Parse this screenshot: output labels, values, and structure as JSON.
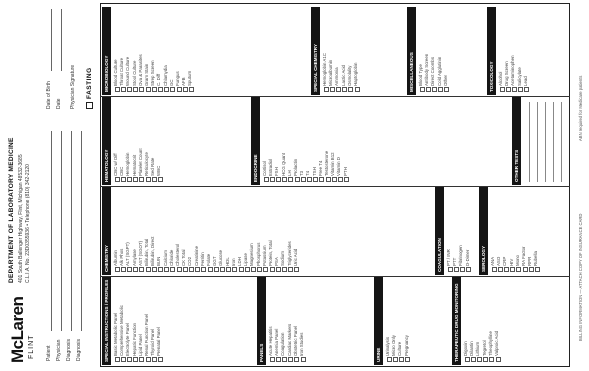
{
  "brand": {
    "logo_text": "McLaren",
    "location": "FLINT"
  },
  "department": {
    "title": "DEPARTMENT OF LABORATORY MEDICINE",
    "address_line_1": "401 South Ballenger Highway, Flint, Michigan 48532-3685",
    "address_line_2": "C.L.I.A. No. 23D0355936 • Telephone (810) 342-2120"
  },
  "patient_fields": [
    "Patient",
    "Physician",
    "Diagnosis",
    "Diagnosis"
  ],
  "date_fields": [
    "Date of Birth",
    "Date"
  ],
  "other_fields": [
    "Physician Signature"
  ],
  "fasting_label": "FASTING",
  "sections": [
    {
      "id": "special",
      "title": "SPECIAL INSTRUCTIONS / PROFILES",
      "items": [
        "Basic Metabolic Panel",
        "Comprehensive Metabolic",
        "Electrolyte Panel",
        "Hepatic Function",
        "Lipid Panel",
        "Renal Function Panel",
        "Thyroid Panel",
        "Prenatal Panel"
      ]
    },
    {
      "id": "panels",
      "title": "PANELS",
      "items": [
        "Acute Hepatitis",
        "Anemia Panel",
        "Coagulation",
        "Cardiac Markers",
        "Obstetric Panel",
        "Iron Studies"
      ]
    },
    {
      "id": "chemistry",
      "title": "CHEMISTRY",
      "items": [
        "Albumin",
        "Alk Phos",
        "ALT (SGPT)",
        "Amylase",
        "AST (SGOT)",
        "Bilirubin, Total",
        "Bilirubin, Direct",
        "BUN",
        "Calcium",
        "Chloride",
        "Cholesterol",
        "CK Total",
        "CO2",
        "Creatinine",
        "Ferritin",
        "Folate",
        "GGT",
        "Glucose",
        "HDL",
        "Iron",
        "LDH",
        "Lipase",
        "Magnesium",
        "Phosphorus",
        "Potassium",
        "Protein, Total",
        "PSA",
        "Sodium",
        "Triglycerides",
        "Uric Acid"
      ]
    },
    {
      "id": "hematology",
      "title": "HEMATOLOGY",
      "items": [
        "CBC w/ Diff",
        "CBC",
        "Hemoglobin",
        "Hematocrit",
        "Platelet Count",
        "Reticulocyte",
        "Sed Rate",
        "WBC"
      ]
    },
    {
      "id": "coag",
      "title": "COAGULATION",
      "items": [
        "PT / INR",
        "PTT",
        "Fibrinogen",
        "D-Dimer"
      ]
    },
    {
      "id": "urine",
      "title": "URINE",
      "items": [
        "Urinalysis",
        "Micro Only",
        "Culture",
        "Pregnancy"
      ]
    },
    {
      "id": "drug",
      "title": "THERAPEUTIC DRUG MONITORING",
      "items": [
        "Digoxin",
        "Dilantin",
        "Lithium",
        "Tegretol",
        "Theophylline",
        "Valproic Acid"
      ]
    },
    {
      "id": "serology",
      "title": "SEROLOGY",
      "items": [
        "ANA",
        "ASO",
        "CRP",
        "HIV",
        "Mono",
        "RA Factor",
        "RPR",
        "Rubella"
      ]
    },
    {
      "id": "endocrine",
      "title": "ENDOCRINE",
      "items": [
        "Cortisol",
        "Estradiol",
        "FSH",
        "HCG Quant",
        "LH",
        "Prolactin",
        "T3",
        "T4",
        "TSH",
        "Free T4",
        "Testosterone",
        "Vitamin B12",
        "Vitamin D",
        "PTH"
      ]
    },
    {
      "id": "micro",
      "title": "MICROBIOLOGY",
      "items": [
        "Blood Culture",
        "Throat Culture",
        "Wound Culture",
        "Stool Culture",
        "Ova & Parasites",
        "Gram Stain",
        "Strep Screen",
        "C. Diff",
        "Chlamydia",
        "GC",
        "Fungus",
        "AFB",
        "Sputum"
      ]
    },
    {
      "id": "special2",
      "title": "SPECIAL CHEMISTRY",
      "items": [
        "Hemoglobin A1C",
        "Microalbumin",
        "Ammonia",
        "Lactic Acid",
        "Osmolality",
        "Haptoglobin"
      ]
    },
    {
      "id": "misc",
      "title": "MISCELLANEOUS",
      "items": [
        "Blood Type",
        "Antibody Screen",
        "Direct Coombs",
        "Cold Agglutinin",
        "Other"
      ]
    },
    {
      "id": "other",
      "title": "OTHER TESTS",
      "items": []
    },
    {
      "id": "tox",
      "title": "TOXICOLOGY",
      "items": [
        "Alcohol",
        "Drug Screen",
        "Acetaminophen",
        "Salicylate",
        "Lead"
      ]
    }
  ],
  "footer_left": "BILLING INFORMATION — ATTACH COPY OF INSURANCE CARD",
  "footer_right": "ABN required for Medicare patients",
  "colors": {
    "ink": "#151515",
    "paper": "#ffffff",
    "line": "#888888"
  }
}
